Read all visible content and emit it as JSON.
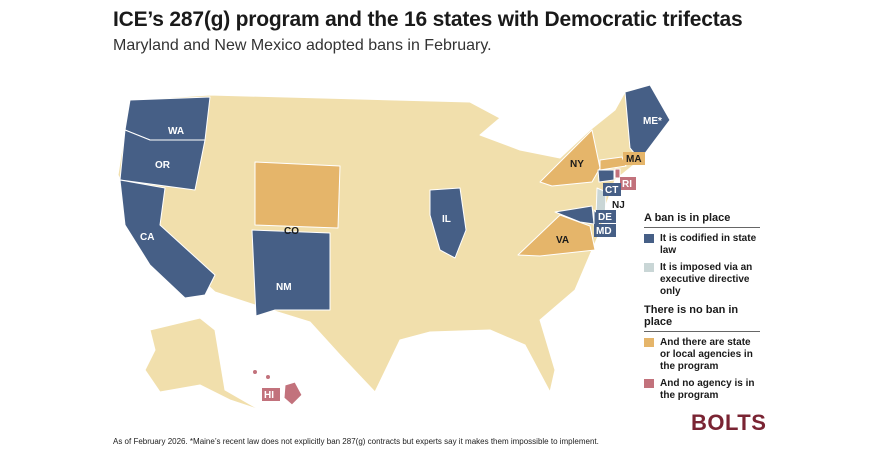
{
  "title": "ICE’s 287(g) program and the 16 states with Democratic trifectas",
  "subtitle": "Maryland and New Mexico adopted bans in February.",
  "colors": {
    "codified": "#465f86",
    "executive": "#c9d6d6",
    "agencies": "#e5b56a",
    "no_agency": "#c2727c",
    "other": "#f1dfac"
  },
  "states": {
    "WA": "WA",
    "OR": "OR",
    "CA": "CA",
    "CO": "CO",
    "NM": "NM",
    "IL": "IL",
    "NY": "NY",
    "MA": "MA",
    "ME": "ME*",
    "RI": "RI",
    "CT": "CT",
    "NJ": "NJ",
    "DE": "DE",
    "MD": "MD",
    "VA": "VA",
    "HI": "HI"
  },
  "legend": {
    "group1": "A ban is in place",
    "codified": "It is codified in state law",
    "executive": "It is imposed via an executive directive only",
    "group2": "There is no ban in place",
    "agencies": "And there are state or local agencies in the program",
    "no_agency": "And no agency is in the program"
  },
  "footnote": "As of February 2026. *Maine’s recent law does not explicitly ban 287(g) contracts but experts say it makes them impossible to implement.",
  "logo": "BOLTS"
}
